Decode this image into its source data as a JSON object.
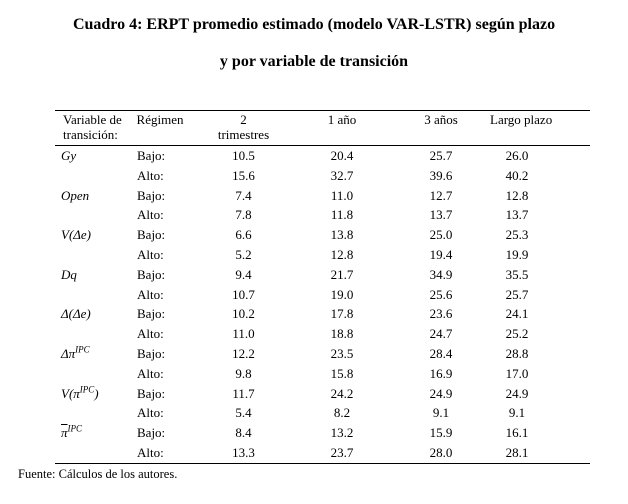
{
  "title": {
    "line1": "Cuadro 4: ERPT promedio estimado (modelo VAR-LSTR) según plazo",
    "line2": "y por variable de transición"
  },
  "table": {
    "headers": [
      "Variable de\ntransición:",
      "Régimen",
      "2\ntrimestres",
      "1 año",
      "3 años",
      "Largo plazo"
    ],
    "regime_labels": {
      "bajo": "Bajo:",
      "alto": "Alto:"
    },
    "groups": [
      {
        "variable": [
          {
            "text": "Gy"
          }
        ],
        "bajo": [
          "10.5",
          "20.4",
          "25.7",
          "26.0"
        ],
        "alto": [
          "15.6",
          "32.7",
          "39.6",
          "40.2"
        ]
      },
      {
        "variable": [
          {
            "text": "Open"
          }
        ],
        "bajo": [
          "7.4",
          "11.0",
          "12.7",
          "12.8"
        ],
        "alto": [
          "7.8",
          "11.8",
          "13.7",
          "13.7"
        ]
      },
      {
        "variable": [
          {
            "text": "V(Δe)"
          }
        ],
        "bajo": [
          "6.6",
          "13.8",
          "25.0",
          "25.3"
        ],
        "alto": [
          "5.2",
          "12.8",
          "19.4",
          "19.9"
        ]
      },
      {
        "variable": [
          {
            "text": "Dq"
          }
        ],
        "bajo": [
          "9.4",
          "21.7",
          "34.9",
          "35.5"
        ],
        "alto": [
          "10.7",
          "19.0",
          "25.6",
          "25.7"
        ]
      },
      {
        "variable": [
          {
            "text": "Δ(Δe)"
          }
        ],
        "bajo": [
          "10.2",
          "17.8",
          "23.6",
          "24.1"
        ],
        "alto": [
          "11.0",
          "18.8",
          "24.7",
          "25.2"
        ]
      },
      {
        "variable": [
          {
            "text": "Δπ"
          },
          {
            "text": "IPC",
            "sup": true
          }
        ],
        "bajo": [
          "12.2",
          "23.5",
          "28.4",
          "28.8"
        ],
        "alto": [
          "9.8",
          "15.8",
          "16.9",
          "17.0"
        ]
      },
      {
        "variable": [
          {
            "text": "V(π"
          },
          {
            "text": "IPC",
            "sup": true
          },
          {
            "text": ")"
          }
        ],
        "bajo": [
          "11.7",
          "24.2",
          "24.9",
          "24.9"
        ],
        "alto": [
          "5.4",
          "8.2",
          "9.1",
          "9.1"
        ]
      },
      {
        "variable": [
          {
            "text": "π",
            "overline": true
          },
          {
            "text": "IPC",
            "sup": true
          }
        ],
        "bajo": [
          "8.4",
          "13.2",
          "15.9",
          "16.1"
        ],
        "alto": [
          "13.3",
          "23.7",
          "28.0",
          "28.1"
        ]
      }
    ]
  },
  "footer": {
    "source": "Fuente: Cálculos de los autores."
  }
}
